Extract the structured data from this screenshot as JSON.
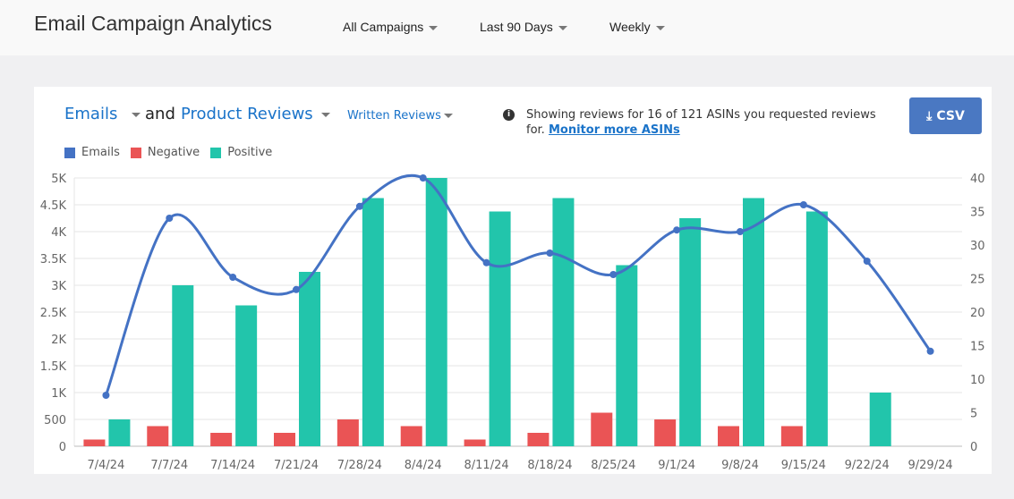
{
  "header": {
    "title": "Email Campaign Analytics",
    "filters": [
      "All Campaigns",
      "Last 90 Days",
      "Weekly"
    ]
  },
  "card": {
    "metric_left": "Emails",
    "connector": "and",
    "metric_right": "Product Reviews",
    "review_type": "Written Reviews",
    "info_text": "Showing reviews for 16 of 121 ASINs you requested reviews for.",
    "info_link": "Monitor more ASINs",
    "csv_label": "CSV"
  },
  "chart_data": {
    "type": "bar+line",
    "categories": [
      "7/4/24",
      "7/7/24",
      "7/14/24",
      "7/21/24",
      "7/28/24",
      "8/4/24",
      "8/11/24",
      "8/18/24",
      "8/25/24",
      "9/1/24",
      "9/8/24",
      "9/15/24",
      "9/22/24",
      "9/29/24"
    ],
    "series": [
      {
        "name": "Emails",
        "type": "line",
        "axis": "left",
        "color": "#4472c4",
        "values": [
          950,
          4250,
          3150,
          2920,
          4470,
          5000,
          3420,
          3600,
          3200,
          4030,
          4000,
          4500,
          3450,
          1770
        ]
      },
      {
        "name": "Negative",
        "type": "bar",
        "axis": "right",
        "color": "#ea5455",
        "values": [
          1,
          3,
          2,
          2,
          4,
          3,
          1,
          2,
          5,
          4,
          3,
          3,
          0,
          0
        ]
      },
      {
        "name": "Positive",
        "type": "bar",
        "axis": "right",
        "color": "#22c5ab",
        "values": [
          4,
          24,
          21,
          26,
          37,
          40,
          35,
          37,
          27,
          34,
          37,
          35,
          8,
          0
        ]
      }
    ],
    "left_axis": {
      "ticks": [
        "0",
        "500",
        "1K",
        "1.5K",
        "2K",
        "2.5K",
        "3K",
        "3.5K",
        "4K",
        "4.5K",
        "5K"
      ],
      "ylim": [
        0,
        5000
      ]
    },
    "right_axis": {
      "ticks": [
        "0",
        "5",
        "10",
        "15",
        "20",
        "25",
        "30",
        "35",
        "40"
      ],
      "ylim": [
        0,
        40
      ]
    },
    "grid": true,
    "legend": "top-left"
  }
}
